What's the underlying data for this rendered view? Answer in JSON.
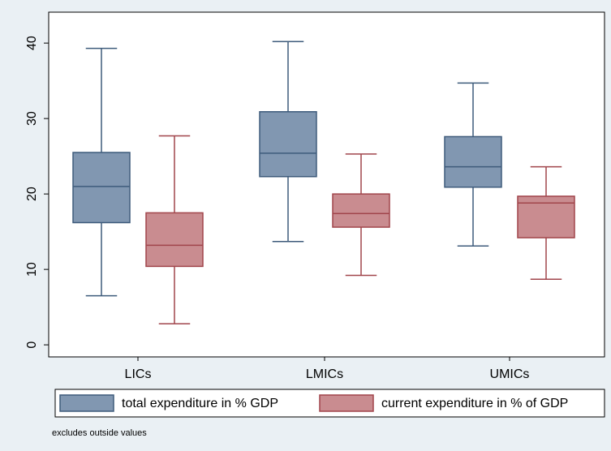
{
  "chart_data": {
    "type": "box",
    "categories": [
      "LICs",
      "LMICs",
      "UMICs"
    ],
    "series": [
      {
        "name": "total expenditure in % GDP",
        "color": "#8197b1",
        "edge_color": "#3e5b7b",
        "min": [
          6.5,
          13.7,
          13.1
        ],
        "q1": [
          16.2,
          22.3,
          20.9
        ],
        "median": [
          21.0,
          25.4,
          23.6
        ],
        "q3": [
          25.5,
          30.9,
          27.6
        ],
        "max": [
          39.3,
          40.2,
          34.7
        ]
      },
      {
        "name": "current expenditure in % of GDP",
        "color": "#c98c90",
        "edge_color": "#a1454b",
        "min": [
          2.8,
          9.2,
          8.7
        ],
        "q1": [
          10.4,
          15.6,
          14.2
        ],
        "median": [
          13.2,
          17.4,
          18.8
        ],
        "q3": [
          17.5,
          20.0,
          19.7
        ],
        "max": [
          27.7,
          25.3,
          23.6
        ]
      }
    ],
    "ylim": [
      -1.6,
      44.1
    ],
    "yticks": [
      0,
      10,
      20,
      30,
      40
    ],
    "grid": false,
    "note": "excludes outside values"
  }
}
